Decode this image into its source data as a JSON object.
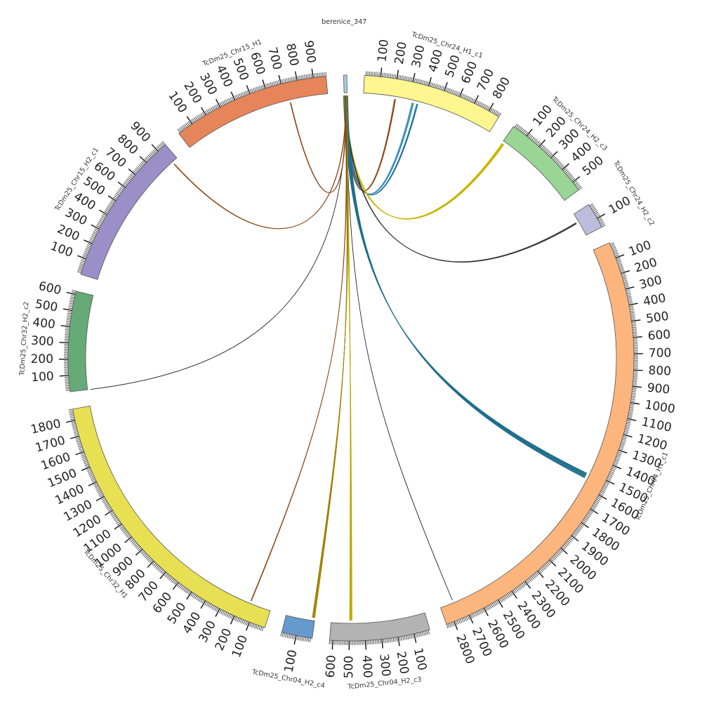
{
  "chart_data": {
    "type": "chord",
    "segments": [
      {
        "name": "berenice_347",
        "length": 20,
        "color": "#a6cee3",
        "label_mode": "horizontal"
      },
      {
        "name": "TcDm25_Chr24_H1_c1",
        "length": 870,
        "color": "#fff68f"
      },
      {
        "name": "TcDm25_Chr24_H2_c3",
        "length": 560,
        "color": "#99d594"
      },
      {
        "name": "TcDm25_Chr24_H2_c2",
        "length": 160,
        "color": "#bcbddc"
      },
      {
        "name": "TcDm25_Chr04_H1_c1",
        "length": 2850,
        "color": "#fdb57e"
      },
      {
        "name": "TcDm25_Chr04_H2_c3",
        "length": 620,
        "color": "#b3b3b3"
      },
      {
        "name": "TcDm25_Chr04_H2_c4",
        "length": 190,
        "color": "#6699cc"
      },
      {
        "name": "TcDm25_Chr32_H1",
        "length": 1870,
        "color": "#e8e053"
      },
      {
        "name": "TcDm25_Chr32_H2_c2",
        "length": 620,
        "color": "#66aa77"
      },
      {
        "name": "TcDm25_Chr15_H2_c1",
        "length": 960,
        "color": "#9b8fc7"
      },
      {
        "name": "TcDm25_Chr15_H1",
        "length": 980,
        "color": "#e6845a"
      }
    ],
    "links": [
      {
        "source": "berenice_347",
        "target": "TcDm25_Chr24_H1_c1",
        "position": 210,
        "count": 3,
        "color": "#8b4513"
      },
      {
        "source": "berenice_347",
        "target": "TcDm25_Chr24_H1_c1",
        "position": 330,
        "count": 4,
        "color": "#3a8fb7"
      },
      {
        "source": "berenice_347",
        "target": "TcDm25_Chr24_H1_c1",
        "position": 360,
        "count": 3,
        "color": "#1e6fa0"
      },
      {
        "source": "berenice_347",
        "target": "TcDm25_Chr24_H2_c3",
        "position": 10,
        "count": 5,
        "color": "#c8b400"
      },
      {
        "source": "berenice_347",
        "target": "TcDm25_Chr24_H2_c2",
        "position": 60,
        "count": 3,
        "color": "#333333"
      },
      {
        "source": "berenice_347",
        "target": "TcDm25_Chr04_H1_c1",
        "position": 1530,
        "count": 10,
        "color": "#1f6f8b"
      },
      {
        "source": "berenice_347",
        "target": "TcDm25_Chr04_H1_c1",
        "position": 2760,
        "count": 1,
        "color": "#222222"
      },
      {
        "source": "berenice_347",
        "target": "TcDm25_Chr04_H2_c3",
        "position": 490,
        "count": 5,
        "color": "#b8a800"
      },
      {
        "source": "berenice_347",
        "target": "TcDm25_Chr04_H2_c4",
        "position": 10,
        "count": 5,
        "color": "#a08000"
      },
      {
        "source": "berenice_347",
        "target": "TcDm25_Chr32_H1",
        "position": 140,
        "count": 2,
        "color": "#8b4513"
      },
      {
        "source": "berenice_347",
        "target": "TcDm25_Chr32_H2_c2",
        "position": 0,
        "count": 1,
        "color": "#222222"
      },
      {
        "source": "berenice_347",
        "target": "TcDm25_Chr15_H2_c1",
        "position": 920,
        "count": 2,
        "color": "#8b4513"
      },
      {
        "source": "berenice_347",
        "target": "TcDm25_Chr15_H1",
        "position": 730,
        "count": 2,
        "color": "#8b4513"
      }
    ]
  }
}
